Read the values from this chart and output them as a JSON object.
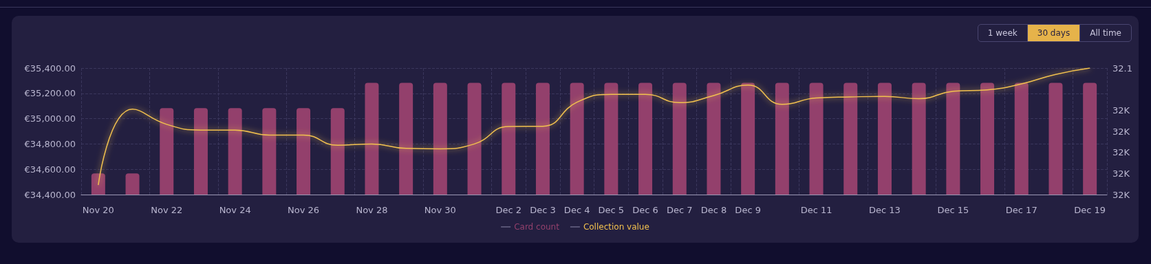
{
  "chart_data": {
    "type": "bar",
    "categories": [
      "Nov 20",
      null,
      "Nov 22",
      null,
      "Nov 24",
      null,
      "Nov 26",
      null,
      "Nov 28",
      null,
      "Nov 30",
      null,
      "Dec 2",
      "Dec 3",
      "Dec 4",
      "Dec 5",
      "Dec 6",
      "Dec 7",
      "Dec 8",
      "Dec 9",
      null,
      "Dec 11",
      null,
      "Dec 13",
      null,
      "Dec 15",
      null,
      "Dec 17",
      null,
      "Dec 19"
    ],
    "series": [
      {
        "name": "Card count",
        "axis": "y2",
        "color": "#93406c",
        "values": [
          32.05,
          32.05,
          32.081,
          32.081,
          32.081,
          32.081,
          32.081,
          32.081,
          32.093,
          32.093,
          32.093,
          32.093,
          32.093,
          32.093,
          32.093,
          32.093,
          32.093,
          32.093,
          32.093,
          32.093,
          32.093,
          32.093,
          32.093,
          32.093,
          32.093,
          32.093,
          32.093,
          32.093,
          32.093,
          32.093
        ]
      },
      {
        "name": "Collection value",
        "type": "line",
        "color": "#f2c14e",
        "values": [
          34475,
          35075,
          34955,
          34910,
          34910,
          34870,
          34870,
          34790,
          34800,
          34765,
          34762,
          34800,
          34938,
          34940,
          35130,
          35192,
          35192,
          35127,
          35183,
          35265,
          35113,
          35164,
          35172,
          35176,
          35158,
          35216,
          35228,
          35275,
          35350,
          35400
        ]
      }
    ],
    "ylim": [
      34400,
      35400
    ],
    "yticks": [
      {
        "value": 34400,
        "label": "€34,400.00"
      },
      {
        "value": 34600,
        "label": "€34,600.00"
      },
      {
        "value": 34800,
        "label": "€34,800.00"
      },
      {
        "value": 35000,
        "label": "€35,000.00"
      },
      {
        "value": 35200,
        "label": "€35,200.00"
      },
      {
        "value": 35400,
        "label": "€35,400.00"
      }
    ],
    "y2lim": [
      32.04,
      32.1
    ],
    "y2ticks": [
      {
        "value": 32.04,
        "label": "32K"
      },
      {
        "value": 32.05,
        "label": "32K"
      },
      {
        "value": 32.06,
        "label": "32K"
      },
      {
        "value": 32.07,
        "label": "32K"
      },
      {
        "value": 32.08,
        "label": "32K"
      },
      32.1
    ],
    "grid": true,
    "legend": "bottom",
    "marker": "none",
    "annotations": [
      "1 week",
      "30 days",
      "All time"
    ]
  }
}
